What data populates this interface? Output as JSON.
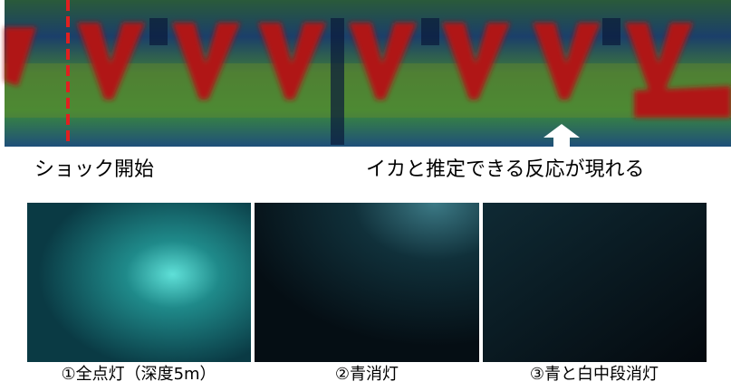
{
  "annotations": {
    "shock_start": "ショック開始",
    "squid_response": "イカと推定できる反応が現れる"
  },
  "photos": [
    {
      "caption": "①全点灯（深度5m）"
    },
    {
      "caption": "②青消灯"
    },
    {
      "caption": "③青と白中段消灯"
    }
  ]
}
